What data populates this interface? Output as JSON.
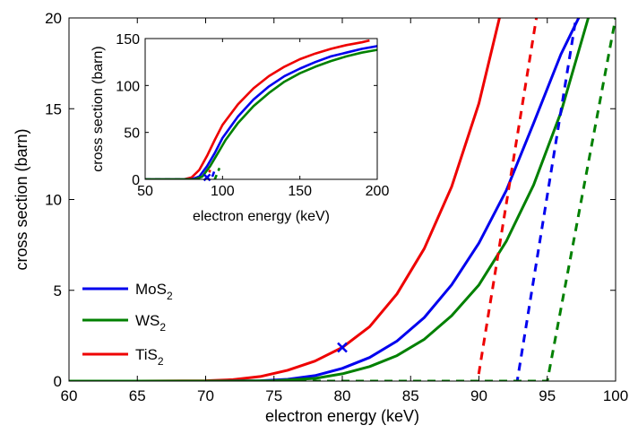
{
  "chart_data": [
    {
      "type": "line",
      "role": "main",
      "xlabel": "electron energy (keV)",
      "ylabel": "cross section (barn)",
      "xlim": [
        60,
        100
      ],
      "ylim": [
        0,
        20
      ],
      "xticks": [
        60,
        65,
        70,
        75,
        80,
        85,
        90,
        95,
        100
      ],
      "yticks": [
        0,
        5,
        10,
        15,
        20
      ],
      "grid": false,
      "legend_position": "bottom-left",
      "legend": [
        {
          "label_base": "MoS",
          "label_sub": "2",
          "color": "#0000ee"
        },
        {
          "label_base": "WS",
          "label_sub": "2",
          "color": "#008000"
        },
        {
          "label_base": "TiS",
          "label_sub": "2",
          "color": "#ee0000"
        }
      ],
      "series": [
        {
          "key": "TiS2",
          "color": "#ee0000",
          "style": "solid",
          "x": [
            60,
            65,
            70,
            72,
            74,
            76,
            78,
            80,
            82,
            84,
            86,
            88,
            90,
            91.5
          ],
          "y": [
            0,
            0,
            0.02,
            0.08,
            0.25,
            0.6,
            1.1,
            1.85,
            3.0,
            4.8,
            7.3,
            10.7,
            15.3,
            20.0
          ]
        },
        {
          "key": "MoS2",
          "color": "#0000ee",
          "style": "solid",
          "x": [
            60,
            70,
            74,
            76,
            78,
            80,
            82,
            84,
            86,
            88,
            90,
            92,
            94,
            96,
            97.3
          ],
          "y": [
            0,
            0,
            0.02,
            0.1,
            0.3,
            0.7,
            1.3,
            2.2,
            3.5,
            5.3,
            7.6,
            10.5,
            14.2,
            18.0,
            20.0
          ]
        },
        {
          "key": "WS2",
          "color": "#008000",
          "style": "solid",
          "x": [
            60,
            72,
            75,
            78,
            80,
            82,
            84,
            86,
            88,
            90,
            92,
            94,
            96,
            98
          ],
          "y": [
            0,
            0,
            0.02,
            0.15,
            0.4,
            0.8,
            1.4,
            2.3,
            3.6,
            5.3,
            7.7,
            10.8,
            14.8,
            20.0
          ]
        },
        {
          "key": "TiS2-dashed",
          "color": "#ee0000",
          "style": "dashed",
          "x": [
            60,
            89.9,
            94.2
          ],
          "y": [
            0,
            0,
            20
          ]
        },
        {
          "key": "MoS2-dashed",
          "color": "#0000ee",
          "style": "dashed",
          "x": [
            60,
            92.8,
            97.1
          ],
          "y": [
            0,
            0,
            20
          ]
        },
        {
          "key": "WS2-dashed",
          "color": "#008000",
          "style": "dashed",
          "x": [
            60,
            95.0,
            100.0
          ],
          "y": [
            0,
            0,
            20
          ]
        }
      ],
      "markers": [
        {
          "key": "marker-x",
          "symbol": "x",
          "color": "#0000ee",
          "x": 80,
          "y": 1.85
        }
      ]
    },
    {
      "type": "line",
      "role": "inset",
      "xlabel": "electron energy (keV)",
      "ylabel": "cross section (barn)",
      "xlim": [
        50,
        200
      ],
      "ylim": [
        0,
        150
      ],
      "xticks": [
        50,
        100,
        150,
        200
      ],
      "yticks": [
        0,
        50,
        100,
        150
      ],
      "grid": false,
      "series": [
        {
          "key": "TiS2",
          "color": "#ee0000",
          "style": "solid",
          "x": [
            50,
            75,
            80,
            85,
            90,
            95,
            100,
            110,
            120,
            130,
            140,
            150,
            160,
            170,
            180,
            190,
            195
          ],
          "y": [
            0,
            0,
            2,
            10,
            25,
            42,
            58,
            80,
            97,
            110,
            120,
            128,
            134,
            139,
            143,
            146,
            148
          ]
        },
        {
          "key": "MoS2",
          "color": "#0000ee",
          "style": "solid",
          "x": [
            50,
            80,
            85,
            90,
            95,
            100,
            110,
            120,
            130,
            140,
            150,
            160,
            170,
            180,
            190,
            200
          ],
          "y": [
            0,
            0,
            3,
            14,
            28,
            44,
            67,
            85,
            99,
            110,
            118,
            125,
            131,
            135,
            139,
            142
          ]
        },
        {
          "key": "WS2",
          "color": "#008000",
          "style": "solid",
          "x": [
            50,
            82,
            87,
            92,
            97,
            102,
            110,
            120,
            130,
            140,
            150,
            160,
            170,
            180,
            190,
            200
          ],
          "y": [
            0,
            0,
            3,
            14,
            28,
            42,
            60,
            78,
            92,
            104,
            113,
            120,
            126,
            131,
            135,
            138
          ]
        },
        {
          "key": "TiS2-dashed",
          "color": "#ee0000",
          "style": "dashed",
          "x": [
            50,
            89.9,
            92
          ],
          "y": [
            0,
            0,
            10
          ]
        },
        {
          "key": "MoS2-dashed",
          "color": "#0000ee",
          "style": "dashed",
          "x": [
            50,
            92.8,
            95
          ],
          "y": [
            0,
            0,
            10
          ]
        },
        {
          "key": "WS2-dashed",
          "color": "#008000",
          "style": "dashed",
          "x": [
            50,
            95,
            98
          ],
          "y": [
            0,
            0,
            12
          ]
        }
      ],
      "markers": [
        {
          "key": "marker-x",
          "symbol": "x",
          "color": "#0000ee",
          "x": 90,
          "y": 2
        }
      ]
    }
  ]
}
